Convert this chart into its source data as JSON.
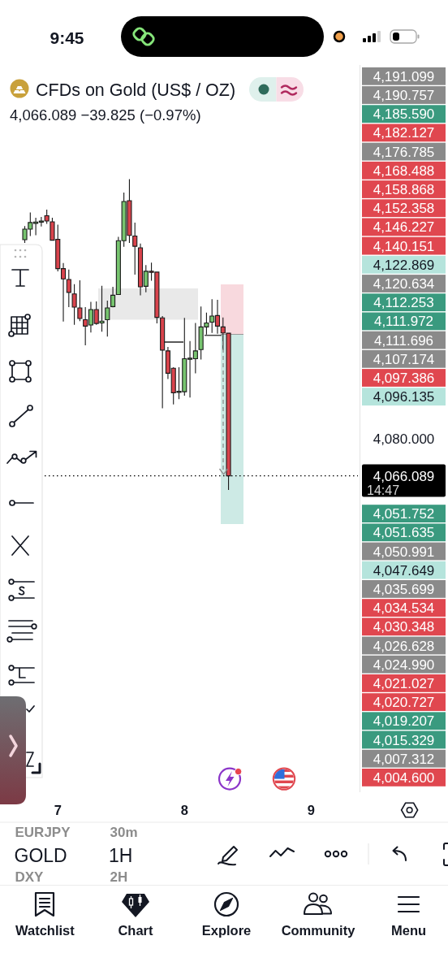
{
  "chart_data": {
    "type": "candlestick",
    "title": "CFDs on Gold (US$ / OZ)",
    "subtitle": "4,066.089 −39.825 (−0.97%)",
    "categories": [
      null,
      null,
      null,
      null,
      null,
      null,
      null,
      null,
      null,
      null,
      "7",
      null,
      null,
      null,
      null,
      null,
      null,
      null,
      null,
      null,
      null,
      null,
      null,
      null,
      null,
      null,
      null,
      null,
      null,
      null,
      null,
      null,
      null,
      "8",
      null,
      null,
      null,
      null,
      null,
      null,
      null,
      null,
      null,
      null,
      null,
      null,
      null,
      null,
      null,
      null,
      null,
      null,
      null,
      null,
      null,
      null,
      "9",
      null,
      null,
      null,
      null,
      null,
      null,
      null,
      null
    ],
    "ohlc": [
      null,
      null,
      null,
      null,
      [
        4155.7,
        4160.9,
        4154.5,
        4159.7
      ],
      [
        4159.7,
        4166.0,
        4157.1,
        4162.2
      ],
      [
        4161.9,
        4164.0,
        4157.4,
        4162.4
      ],
      [
        4162.5,
        4164.3,
        4160.7,
        4162.8
      ],
      [
        4164.8,
        4167.1,
        4161.7,
        4162.8
      ],
      [
        4162.5,
        4164.0,
        4155.3,
        4155.5
      ],
      [
        4155.8,
        4161.4,
        4143.7,
        4144.7
      ],
      [
        4144.7,
        4146.8,
        4124.6,
        4140.8
      ],
      [
        4140.6,
        4144.4,
        4130.1,
        4135.7
      ],
      [
        4135.1,
        4138.8,
        4123.4,
        4130.1
      ],
      [
        4129.8,
        4140.3,
        4124.8,
        4125.8
      ],
      [
        4125.3,
        4130.1,
        4115.6,
        4122.9
      ],
      [
        4123.3,
        4132.1,
        4120.5,
        4129.2
      ],
      [
        4129.2,
        4132.3,
        4123.4,
        4123.9
      ],
      [
        4124.1,
        4138.2,
        4120.8,
        4124.8
      ],
      [
        4125.3,
        4132.6,
        4118.9,
        4129.8
      ],
      [
        4130.3,
        4137.8,
        4130.0,
        4134.6
      ],
      [
        4134.9,
        4156.8,
        4134.7,
        4155.3
      ],
      [
        4155.3,
        4173.6,
        4153.0,
        4170.2
      ],
      [
        4170.5,
        4178.7,
        4154.5,
        4157.3
      ],
      [
        4157.1,
        4162.2,
        4142.4,
        4153.2
      ],
      [
        4152.6,
        4154.2,
        4134.6,
        4137.8
      ],
      [
        4138.0,
        4146.1,
        4135.7,
        4143.7
      ],
      [
        4143.7,
        4147.0,
        4140.1,
        4143.4
      ],
      [
        4143.4,
        4143.5,
        4123.9,
        4126.2
      ],
      [
        4126.0,
        4126.7,
        4091.7,
        4113.8
      ],
      [
        4113.5,
        4115.0,
        4102.8,
        4105.0
      ],
      [
        4106.9,
        4107.3,
        4093.2,
        4097.6
      ],
      [
        4097.9,
        4107.3,
        4095.2,
        4098.2
      ],
      [
        4098.0,
        4126.0,
        4096.5,
        4110.5
      ],
      [
        4110.5,
        4117.2,
        4095.8,
        4110.7
      ],
      [
        4110.5,
        4124.1,
        4105.0,
        4113.5
      ],
      [
        4114.0,
        4130.3,
        4110.2,
        4122.6
      ],
      [
        4122.6,
        4128.0,
        4119.7,
        4124.1
      ],
      [
        4124.4,
        4133.1,
        4120.3,
        4126.7
      ],
      [
        4126.9,
        4132.9,
        4120.0,
        4122.9
      ],
      [
        4122.6,
        4126.2,
        4113.8,
        4120.3
      ],
      [
        4120.2,
        4120.3,
        4060.7,
        4066.089
      ],
      null,
      null,
      null,
      null,
      null,
      null,
      null,
      null,
      null,
      null,
      null,
      null,
      null,
      null,
      null,
      null,
      null,
      null,
      null,
      null,
      null,
      null,
      null
    ],
    "colors": [
      null,
      null,
      null,
      null,
      "#77c46f",
      "#77c46f",
      "#77c46f",
      "#77c46f",
      "#d9434c",
      "#d9434c",
      "#d9434c",
      "#d9434c",
      "#d9434c",
      "#d9434c",
      "#d9434c",
      "#d9434c",
      "#77c46f",
      "#d9434c",
      "#77c46f",
      "#77c46f",
      "#77c46f",
      "#77c46f",
      "#77c46f",
      "#d9434c",
      "#d9434c",
      "#d9434c",
      "#77c46f",
      "#d9434c",
      "#d9434c",
      "#d9434c",
      "#d9434c",
      "#d9434c",
      "#77c46f",
      "#77c46f",
      "#77c46f",
      "#77c46f",
      "#77c46f",
      "#77c46f",
      "#77c46f",
      "#d9434c",
      "#d9434c",
      "#d9434c",
      null,
      null,
      null,
      null,
      null,
      null,
      null,
      null,
      null,
      null,
      null,
      null,
      null,
      null,
      null,
      null,
      null,
      null,
      null,
      null,
      null,
      null,
      null
    ],
    "ylim": [
      3946,
      4222
    ],
    "yticks": [
      {
        "value": 4080,
        "label": "4,080.000"
      },
      {
        "value": 4066.089,
        "label": "4,066.089"
      }
    ],
    "ref_lines": [
      {
        "axis": "y",
        "value": 4066.089,
        "color": "#000000",
        "line_style": "dotted"
      }
    ],
    "annotations": [
      "9:45",
      "14:47",
      "4,191.099",
      "4,190.757",
      "4,185.590",
      "4,182.127",
      "4,176.785",
      "4,168.488",
      "4,158.868",
      "4,152.358",
      "4,146.227",
      "4,140.151",
      "4,122.869",
      "4,120.634",
      "4,112.253",
      "4,111.972",
      "4,111.696",
      "4,107.174",
      "4,097.386",
      "4,096.135",
      "4,051.752",
      "4,051.635",
      "4,050.991",
      "4,047.649",
      "4,035.699",
      "4,034.534",
      "4,030.348",
      "4,026.628",
      "4,024.990",
      "4,021.027",
      "4,020.727",
      "4,019.207",
      "4,015.329",
      "4,007.312",
      "4,004.600",
      "EURJPY",
      "30m",
      "GOLD",
      "1H",
      "DXY",
      "2H",
      "Watchlist",
      "Chart",
      "Explore",
      "Community",
      "Menu"
    ]
  }
}
